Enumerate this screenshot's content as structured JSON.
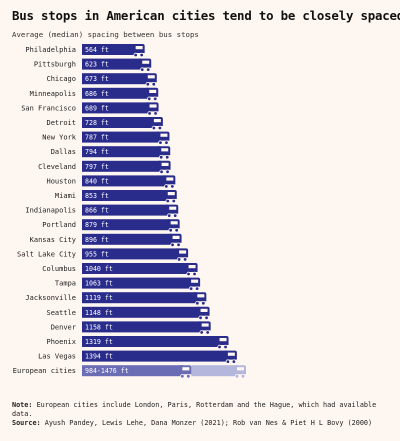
{
  "title": "Bus stops in American cities tend to be closely spaced",
  "subtitle": "Average (median) spacing between bus stops",
  "chart_data": {
    "type": "bar",
    "orientation": "horizontal",
    "title": "Bus stops in American cities tend to be closely spaced",
    "subtitle": "Average (median) spacing between bus stops",
    "unit": "ft",
    "xlim": [
      0,
      1476
    ],
    "grid": false,
    "categories": [
      "Philadelphia",
      "Pittsburgh",
      "Chicago",
      "Minneapolis",
      "San Francisco",
      "Detroit",
      "New York",
      "Dallas",
      "Cleveland",
      "Houston",
      "Miami",
      "Indianapolis",
      "Portland",
      "Kansas City",
      "Salt Lake City",
      "Columbus",
      "Tampa",
      "Jacksonville",
      "Seattle",
      "Denver",
      "Phoenix",
      "Las Vegas"
    ],
    "values": [
      564,
      623,
      673,
      686,
      689,
      728,
      787,
      794,
      797,
      840,
      853,
      866,
      879,
      896,
      955,
      1040,
      1063,
      1119,
      1148,
      1158,
      1319,
      1394
    ],
    "labels": [
      "564 ft",
      "623 ft",
      "673 ft",
      "686 ft",
      "689 ft",
      "728 ft",
      "787 ft",
      "794 ft",
      "797 ft",
      "840 ft",
      "853 ft",
      "866 ft",
      "879 ft",
      "896 ft",
      "955 ft",
      "1040 ft",
      "1063 ft",
      "1119 ft",
      "1148 ft",
      "1158 ft",
      "1319 ft",
      "1394 ft"
    ],
    "range_bar": {
      "category": "European cities",
      "low": 984,
      "high": 1476,
      "label": "984-1476 ft"
    }
  },
  "colors": {
    "bar": "#2a2c8c",
    "range_low": "#6a6cb4",
    "range_high": "#b4b6dc",
    "background": "#fdf6f1"
  },
  "note": {
    "note_label": "Note:",
    "note_text": "European cities include London, Paris, Rotterdam and the Hague, which had available data.",
    "source_label": "Source:",
    "source_text": "Ayush Pandey, Lewis Lehe, Dana Monzer (2021); Rob van Nes & Piet H L Bovy (2000)"
  }
}
